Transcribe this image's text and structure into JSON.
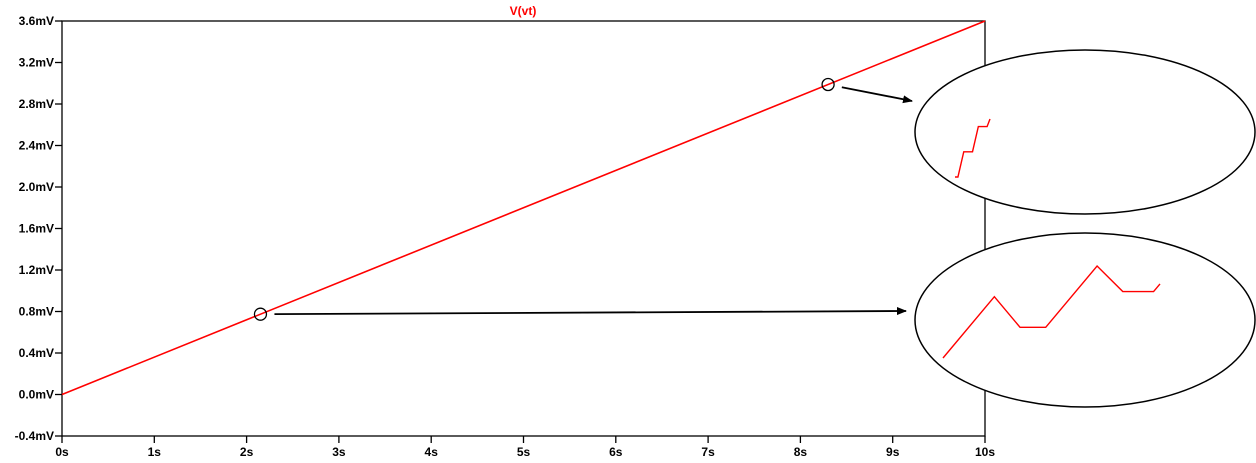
{
  "colors": {
    "trace": "#ff0000",
    "axis": "#000000",
    "background": "#ffffff"
  },
  "chart_data": {
    "type": "line",
    "title": "V(vt)",
    "xlabel": "",
    "ylabel": "",
    "grid": false,
    "xlim": [
      0,
      10
    ],
    "ylim": [
      -0.4,
      3.6
    ],
    "x_ticks": [
      0,
      1,
      2,
      3,
      4,
      5,
      6,
      7,
      8,
      9,
      10
    ],
    "x_tick_labels": [
      "0s",
      "1s",
      "2s",
      "3s",
      "4s",
      "5s",
      "6s",
      "7s",
      "8s",
      "9s",
      "10s"
    ],
    "y_ticks": [
      -0.4,
      0.0,
      0.4,
      0.8,
      1.2,
      1.6,
      2.0,
      2.4,
      2.8,
      3.2,
      3.6
    ],
    "y_tick_labels": [
      "-0.4mV",
      "0.0mV",
      "0.4mV",
      "0.8mV",
      "1.2mV",
      "1.6mV",
      "2.0mV",
      "2.4mV",
      "2.8mV",
      "3.2mV",
      "3.6mV"
    ],
    "series": [
      {
        "name": "V(vt)",
        "x": [
          0,
          10
        ],
        "y": [
          0.0,
          3.6
        ]
      }
    ],
    "annotations": [
      {
        "type": "marker",
        "shape": "circle",
        "x": 2.15,
        "y": 0.774,
        "zoom": "lower"
      },
      {
        "type": "marker",
        "shape": "circle",
        "x": 8.3,
        "y": 2.988,
        "zoom": "upper"
      }
    ],
    "zoom_insets": {
      "upper": [
        [
          0,
          0
        ],
        [
          1,
          0
        ],
        [
          3,
          1
        ],
        [
          4,
          1
        ],
        [
          6,
          1
        ],
        [
          8,
          2
        ],
        [
          9,
          2
        ],
        [
          11,
          2
        ],
        [
          12,
          2.3
        ]
      ],
      "lower": [
        [
          0,
          0
        ],
        [
          4,
          2.4
        ],
        [
          6,
          1.2
        ],
        [
          8,
          1.2
        ],
        [
          12,
          3.6
        ],
        [
          14,
          2.6
        ],
        [
          16.4,
          2.6
        ],
        [
          16.9,
          2.9
        ]
      ]
    }
  }
}
